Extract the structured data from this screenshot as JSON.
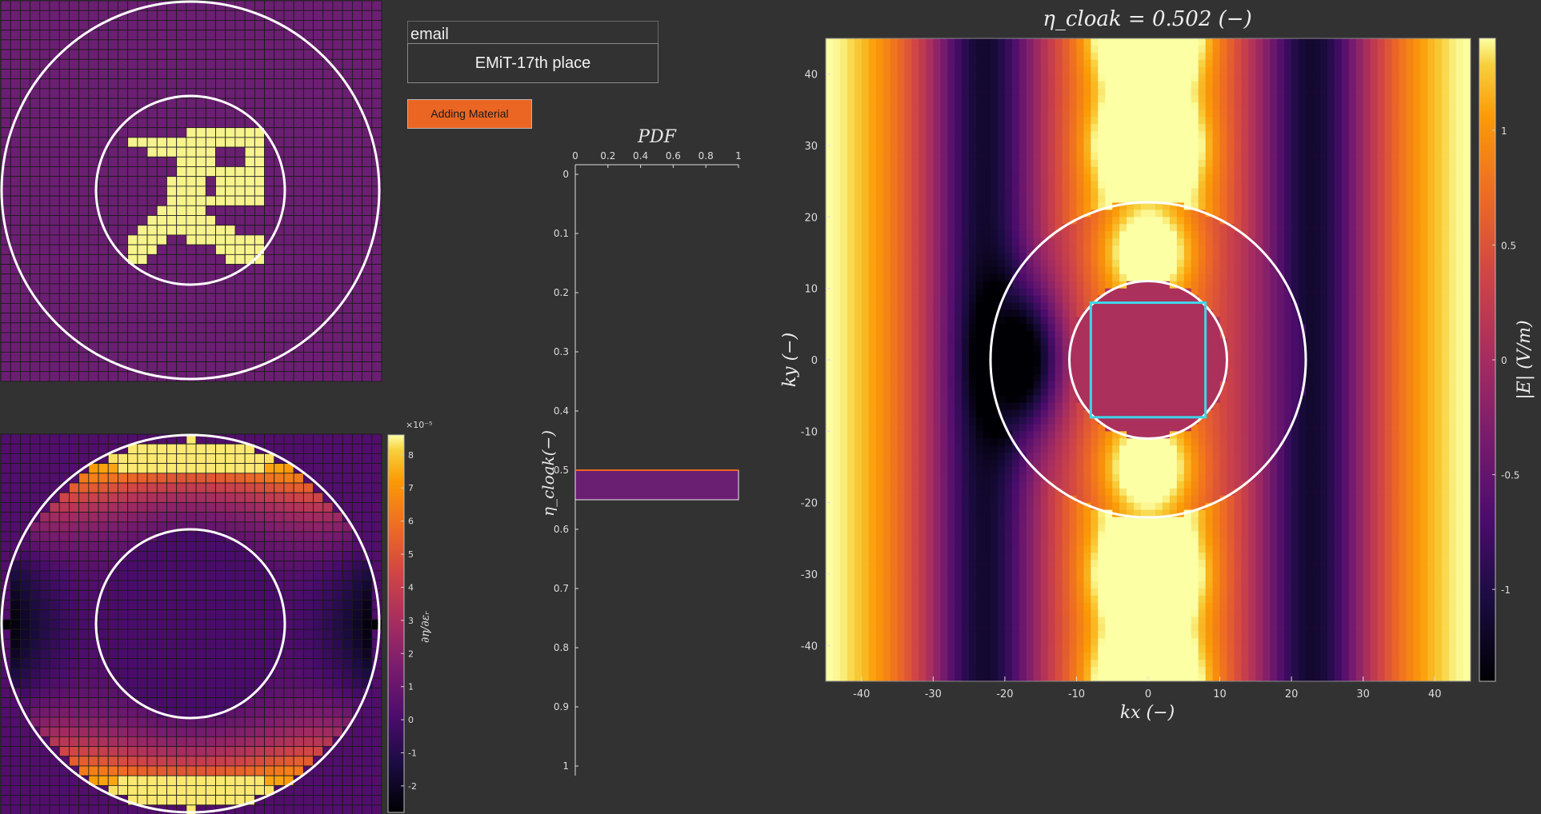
{
  "controls": {
    "email_value": "email",
    "team_label": "EMiT-17th place",
    "add_button_label": "Adding Material"
  },
  "colors": {
    "background": "#323232",
    "button": "#ec6623",
    "design_background": "#6b1f72",
    "design_material": "#f7f38d",
    "cloak_box": "#3fd6e8",
    "circles": "#ffffff"
  },
  "design_grid": {
    "size": 39,
    "material_cells": [
      "19,13",
      "20,13",
      "21,13",
      "22,13",
      "23,13",
      "24,13",
      "25,13",
      "26,13",
      "13,14",
      "14,14",
      "15,14",
      "16,14",
      "17,14",
      "18,14",
      "19,14",
      "20,14",
      "21,14",
      "22,14",
      "23,14",
      "24,14",
      "25,14",
      "26,14",
      "15,15",
      "16,15",
      "17,15",
      "18,15",
      "19,15",
      "20,15",
      "21,15",
      "25,15",
      "26,15",
      "18,16",
      "19,16",
      "20,16",
      "21,16",
      "25,16",
      "26,16",
      "18,17",
      "19,17",
      "20,17",
      "21,17",
      "22,17",
      "23,17",
      "24,17",
      "25,17",
      "26,17",
      "17,18",
      "18,18",
      "19,18",
      "20,18",
      "22,18",
      "23,18",
      "24,18",
      "25,18",
      "26,18",
      "17,19",
      "18,19",
      "19,19",
      "20,19",
      "22,19",
      "23,19",
      "24,19",
      "25,19",
      "26,19",
      "17,20",
      "18,20",
      "19,20",
      "20,20",
      "21,20",
      "22,20",
      "23,20",
      "24,20",
      "25,20",
      "26,20",
      "16,21",
      "17,21",
      "18,21",
      "19,21",
      "20,21",
      "15,22",
      "16,22",
      "17,22",
      "18,22",
      "19,22",
      "20,22",
      "21,22",
      "14,23",
      "15,23",
      "16,23",
      "17,23",
      "18,23",
      "19,23",
      "20,23",
      "21,23",
      "22,23",
      "23,23",
      "13,24",
      "14,24",
      "15,24",
      "16,24",
      "19,24",
      "20,24",
      "21,24",
      "22,24",
      "23,24",
      "24,24",
      "25,24",
      "26,24",
      "13,25",
      "14,25",
      "15,25",
      "22,25",
      "23,25",
      "24,25",
      "25,25",
      "26,25",
      "13,26",
      "14,26",
      "23,26",
      "24,26",
      "25,26",
      "26,26"
    ]
  },
  "sensitivity_colorbar": {
    "exponent_label": "×10⁻⁵",
    "ticks": [
      "8",
      "7",
      "6",
      "5",
      "4",
      "3",
      "2",
      "1",
      "0",
      "-1",
      "-2"
    ],
    "label": "∂η/∂εᵣ",
    "range": [
      -2.8,
      8.6
    ]
  },
  "pdf_plot": {
    "title": "PDF",
    "ylabel": "η_cloak(−)",
    "xticks": [
      "0",
      "0.2",
      "0.4",
      "0.6",
      "0.8",
      "1"
    ],
    "yticks": [
      "0",
      "0.1",
      "0.2",
      "0.3",
      "0.4",
      "0.5",
      "0.6",
      "0.7",
      "0.8",
      "0.9",
      "1"
    ],
    "bar_from": 0.5,
    "bar_to": 0.55,
    "bar_value": 1.0
  },
  "field_plot": {
    "title": "η_cloak = 0.502 (−)",
    "xlabel": "kx (−)",
    "ylabel": "ky (−)",
    "colorbar_label": "|E| (V/m)",
    "xticks": [
      "-40",
      "-30",
      "-20",
      "-10",
      "0",
      "10",
      "20",
      "30",
      "40"
    ],
    "yticks": [
      "40",
      "30",
      "20",
      "10",
      "0",
      "-10",
      "-20",
      "-30",
      "-40"
    ],
    "colorbar_ticks": [
      "1",
      "0.5",
      "0",
      "-0.5",
      "-1"
    ],
    "range": [
      -45,
      45
    ],
    "inner_circle_radius": 11,
    "outer_circle_radius": 22,
    "cloak_box_half_width": 8
  },
  "chart_data": [
    {
      "type": "heatmap",
      "title": "",
      "xlabel": "",
      "ylabel": "",
      "description_values": "design grid 39x39, material = 1, background = 0"
    },
    {
      "type": "heatmap",
      "title": "",
      "ylabel": "∂η/∂εᵣ",
      "clim": [
        -2.8e-05,
        8.6e-05
      ]
    },
    {
      "type": "bar",
      "title": "PDF",
      "ylabel": "η_cloak(−)",
      "xlim": [
        0,
        1
      ],
      "ylim": [
        0,
        1
      ],
      "bins": [
        [
          0.5,
          0.55
        ]
      ],
      "values": [
        1.0
      ]
    },
    {
      "type": "heatmap",
      "title": "η_cloak = 0.502 (−)",
      "xlabel": "kx (−)",
      "ylabel": "ky (−)",
      "xlim": [
        -45,
        45
      ],
      "ylim": [
        -45,
        45
      ],
      "clim": [
        -1.4,
        1.4
      ],
      "colorbar_label": "|E| (V/m)"
    }
  ]
}
